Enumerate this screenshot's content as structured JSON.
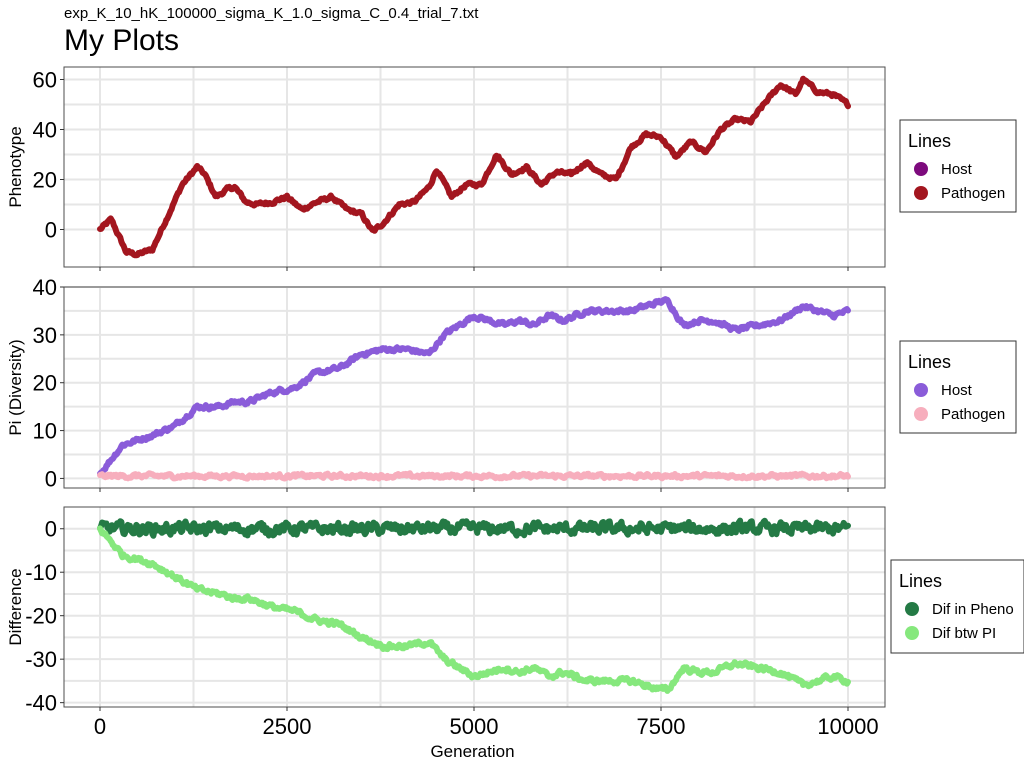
{
  "subtitle": "exp_K_10_hK_100000_sigma_K_1.0_sigma_C_0.4_trial_7.txt",
  "title": "My Plots",
  "chart_data": [
    {
      "type": "line",
      "ylabel": "Phenotype",
      "xlabel": "",
      "xlim": [
        0,
        10000
      ],
      "ylim": [
        -15,
        65
      ],
      "yticks": [
        0,
        20,
        40,
        60
      ],
      "xticks": [
        0,
        2500,
        5000,
        7500,
        10000
      ],
      "legend": {
        "title": "Lines",
        "placement": "right"
      },
      "series": [
        {
          "name": "Host",
          "color": "#7d0a7d",
          "noise": 0.6,
          "x": [
            0,
            10000
          ],
          "values": [
            0,
            0
          ],
          "hidden": true
        },
        {
          "name": "Pathogen",
          "color": "#a3161f",
          "noise": 0.6,
          "x": [
            0,
            150,
            350,
            500,
            700,
            900,
            1100,
            1300,
            1400,
            1550,
            1700,
            1800,
            1950,
            2100,
            2300,
            2500,
            2700,
            2900,
            3100,
            3300,
            3500,
            3650,
            3800,
            4000,
            4200,
            4400,
            4500,
            4700,
            4900,
            5100,
            5300,
            5500,
            5700,
            5900,
            6100,
            6300,
            6500,
            6700,
            6900,
            7100,
            7300,
            7500,
            7700,
            7900,
            8100,
            8300,
            8500,
            8700,
            8900,
            9100,
            9300,
            9400,
            9600,
            9800,
            10000
          ],
          "values": [
            0,
            4,
            -9,
            -10,
            -8,
            5,
            18,
            25,
            22,
            13,
            16,
            17,
            11,
            10,
            11,
            13,
            8,
            11,
            13,
            8,
            6,
            -1,
            3,
            10,
            11,
            17,
            24,
            13,
            18,
            18,
            30,
            22,
            25,
            18,
            23,
            22,
            27,
            22,
            20,
            33,
            38,
            37,
            29,
            35,
            31,
            40,
            44,
            43,
            51,
            58,
            54,
            60,
            55,
            54,
            50
          ]
        }
      ]
    },
    {
      "type": "line",
      "ylabel": "Pi (Diversity)",
      "xlabel": "",
      "xlim": [
        0,
        10000
      ],
      "ylim": [
        -2,
        40
      ],
      "yticks": [
        0,
        10,
        20,
        30,
        40
      ],
      "xticks": [
        0,
        2500,
        5000,
        7500,
        10000
      ],
      "legend": {
        "title": "Lines",
        "placement": "right"
      },
      "series": [
        {
          "name": "Host",
          "color": "#8a5cd9",
          "noise": 0.4,
          "x": [
            0,
            300,
            700,
            1000,
            1300,
            1600,
            1800,
            2000,
            2300,
            2600,
            2900,
            3200,
            3500,
            3800,
            4100,
            4400,
            4600,
            4800,
            5000,
            5200,
            5400,
            5600,
            5800,
            6000,
            6200,
            6500,
            6800,
            7100,
            7500,
            7600,
            7800,
            8000,
            8200,
            8500,
            8800,
            9100,
            9400,
            9600,
            9800,
            10000
          ],
          "values": [
            1,
            7,
            9,
            11,
            15,
            15,
            16,
            16,
            18,
            19,
            22,
            23,
            26,
            27,
            27,
            26,
            30,
            32,
            34,
            33,
            32,
            33,
            32,
            34,
            33,
            35,
            35,
            35,
            37,
            37,
            32,
            33,
            33,
            31,
            32,
            33,
            36,
            35,
            34,
            35
          ]
        },
        {
          "name": "Pathogen",
          "color": "#f7aebd",
          "noise": 0.35,
          "x": [
            0,
            10000
          ],
          "values": [
            0.5,
            0.5
          ]
        }
      ]
    },
    {
      "type": "line",
      "ylabel": "Difference",
      "xlabel": "Generation",
      "xlim": [
        0,
        10000
      ],
      "ylim": [
        -41,
        5
      ],
      "yticks": [
        0,
        -10,
        -20,
        -30,
        -40
      ],
      "xticks": [
        0,
        2500,
        5000,
        7500,
        10000
      ],
      "legend": {
        "title": "Lines",
        "placement": "right"
      },
      "series": [
        {
          "name": "Dif in Pheno",
          "color": "#247a45",
          "noise": 1.1,
          "x": [
            0,
            10000
          ],
          "values": [
            0,
            0
          ]
        },
        {
          "name": "Dif btw PI",
          "color": "#86e87d",
          "noise": 0.5,
          "x": [
            0,
            300,
            700,
            1000,
            1300,
            1600,
            1800,
            2000,
            2300,
            2600,
            2900,
            3200,
            3500,
            3800,
            4100,
            4400,
            4600,
            4800,
            5000,
            5200,
            5400,
            5600,
            5800,
            6000,
            6200,
            6500,
            6800,
            7100,
            7500,
            7600,
            7800,
            8000,
            8200,
            8500,
            8800,
            9100,
            9400,
            9600,
            9800,
            10000
          ],
          "values": [
            0,
            -6,
            -8,
            -11,
            -14,
            -15,
            -16,
            -16,
            -18,
            -19,
            -21,
            -22,
            -25,
            -27,
            -27,
            -26,
            -30,
            -32,
            -34,
            -33,
            -32,
            -33,
            -32,
            -34,
            -33,
            -35,
            -35,
            -35,
            -37,
            -37,
            -32,
            -33,
            -33,
            -31,
            -32,
            -33,
            -36,
            -35,
            -34,
            -35
          ]
        }
      ]
    }
  ]
}
